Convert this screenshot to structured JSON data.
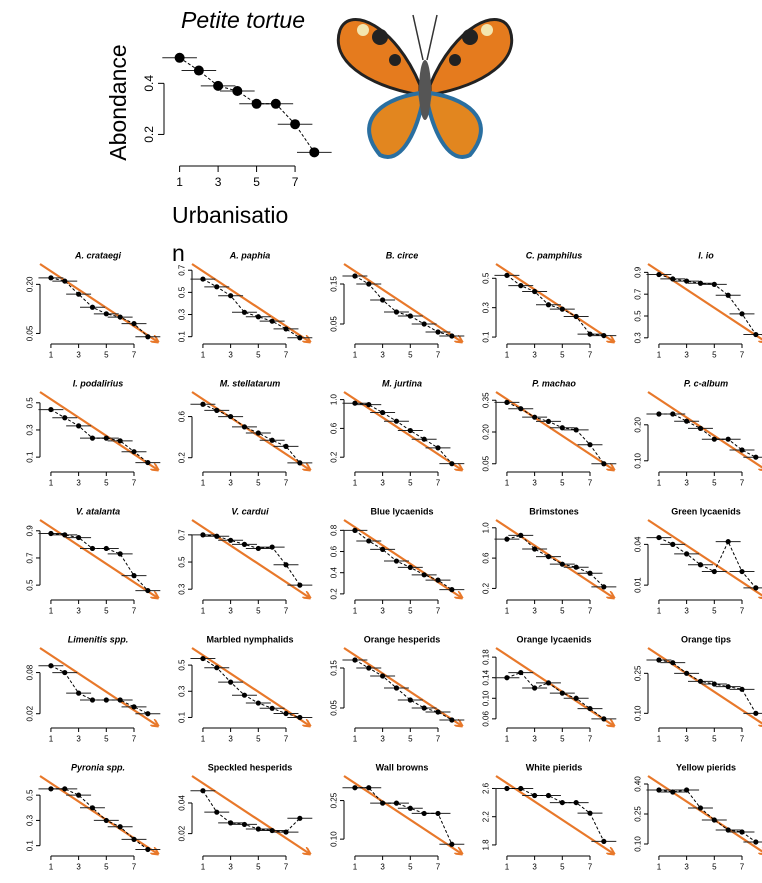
{
  "chart_data": [
    {
      "type": "scatter",
      "title": "Petite tortue",
      "italic": true,
      "y_label": "Abondance",
      "x_label": "Urbanisation",
      "x": [
        1,
        2,
        3,
        4,
        5,
        6,
        7,
        8
      ],
      "values": [
        0.5,
        0.45,
        0.39,
        0.37,
        0.32,
        0.32,
        0.24,
        0.13
      ],
      "xlim": [
        0.5,
        8.4
      ],
      "xticks": [
        1,
        3,
        5,
        7
      ],
      "ylim": [
        0.1,
        0.55
      ],
      "yticks": [
        0.2,
        0.4
      ]
    },
    {
      "type": "scatter",
      "title": "A. crataegi",
      "italic": true,
      "x": [
        1,
        2,
        3,
        4,
        5,
        6,
        7,
        8
      ],
      "values": [
        0.22,
        0.21,
        0.17,
        0.13,
        0.11,
        0.1,
        0.08,
        0.04
      ],
      "xlim": [
        0.5,
        8.3
      ],
      "xticks": [
        1,
        3,
        5,
        7
      ],
      "ylim": [
        0.03,
        0.25
      ],
      "yticks": [
        0.05,
        {
          "value": 0.2,
          "label": "0.20"
        }
      ]
    },
    {
      "type": "scatter",
      "title": "A. paphia",
      "italic": true,
      "x": [
        1,
        2,
        3,
        4,
        5,
        6,
        7,
        8
      ],
      "values": [
        0.62,
        0.55,
        0.47,
        0.32,
        0.28,
        0.24,
        0.17,
        0.09
      ],
      "xlim": [
        0.5,
        8.3
      ],
      "xticks": [
        1,
        3,
        5,
        7
      ],
      "ylim": [
        0.07,
        0.72
      ],
      "yticks": [
        0.1,
        0.3,
        0.5,
        0.7
      ]
    },
    {
      "type": "scatter",
      "title": "B. circe",
      "italic": true,
      "x": [
        1,
        2,
        3,
        4,
        5,
        6,
        7,
        8
      ],
      "values": [
        0.17,
        0.15,
        0.11,
        0.08,
        0.07,
        0.05,
        0.03,
        0.02
      ],
      "xlim": [
        0.5,
        8.3
      ],
      "xticks": [
        1,
        3,
        5,
        7
      ],
      "ylim": [
        0.01,
        0.19
      ],
      "yticks": [
        0.05,
        0.15
      ]
    },
    {
      "type": "scatter",
      "title": "C. pamphilus",
      "italic": true,
      "x": [
        1,
        2,
        3,
        4,
        5,
        6,
        7,
        8
      ],
      "values": [
        0.52,
        0.45,
        0.41,
        0.32,
        0.29,
        0.24,
        0.12,
        0.11
      ],
      "xlim": [
        0.5,
        8.3
      ],
      "xticks": [
        1,
        3,
        5,
        7
      ],
      "ylim": [
        0.08,
        0.57
      ],
      "yticks": [
        0.1,
        0.3,
        0.5
      ]
    },
    {
      "type": "scatter",
      "title": "I. io",
      "italic": true,
      "x": [
        1,
        2,
        3,
        4,
        5,
        6,
        7,
        8
      ],
      "values": [
        0.88,
        0.84,
        0.82,
        0.8,
        0.79,
        0.69,
        0.52,
        0.33
      ],
      "xlim": [
        0.5,
        8.3
      ],
      "xticks": [
        1,
        3,
        5,
        7
      ],
      "ylim": [
        0.28,
        0.94
      ],
      "yticks": [
        0.3,
        0.5,
        0.7,
        0.9
      ]
    },
    {
      "type": "scatter",
      "title": "I. podalirius",
      "italic": true,
      "x": [
        1,
        2,
        3,
        4,
        5,
        6,
        7,
        8
      ],
      "values": [
        0.45,
        0.39,
        0.33,
        0.24,
        0.24,
        0.22,
        0.14,
        0.06
      ],
      "xlim": [
        0.5,
        8.3
      ],
      "xticks": [
        1,
        3,
        5,
        7
      ],
      "ylim": [
        0.02,
        0.55
      ],
      "yticks": [
        0.1,
        0.3,
        0.5
      ]
    },
    {
      "type": "scatter",
      "title": "M. stellatarum",
      "italic": true,
      "x": [
        1,
        2,
        3,
        4,
        5,
        6,
        7,
        8
      ],
      "values": [
        0.72,
        0.66,
        0.6,
        0.5,
        0.44,
        0.37,
        0.31,
        0.15
      ],
      "xlim": [
        0.5,
        8.3
      ],
      "xticks": [
        1,
        3,
        5,
        7
      ],
      "ylim": [
        0.1,
        0.8
      ],
      "yticks": [
        0.2,
        0.6
      ]
    },
    {
      "type": "scatter",
      "title": "M. jurtina",
      "italic": true,
      "x": [
        1,
        2,
        3,
        4,
        5,
        6,
        7,
        8
      ],
      "values": [
        0.95,
        0.93,
        0.82,
        0.7,
        0.57,
        0.45,
        0.33,
        0.11
      ],
      "xlim": [
        0.5,
        8.3
      ],
      "xticks": [
        1,
        3,
        5,
        7
      ],
      "ylim": [
        0.05,
        1.05
      ],
      "yticks": [
        0.2,
        0.6,
        {
          "value": 1,
          "label": "1.0"
        }
      ]
    },
    {
      "type": "scatter",
      "title": "P. machao",
      "italic": true,
      "x": [
        1,
        2,
        3,
        4,
        5,
        6,
        7,
        8
      ],
      "values": [
        0.34,
        0.31,
        0.27,
        0.25,
        0.22,
        0.21,
        0.14,
        0.05
      ],
      "xlim": [
        0.5,
        8.3
      ],
      "xticks": [
        1,
        3,
        5,
        7
      ],
      "ylim": [
        0.03,
        0.37
      ],
      "yticks": [
        0.05,
        {
          "value": 0.2,
          "label": "0.20"
        },
        0.35
      ]
    },
    {
      "type": "scatter",
      "title": "P. c-album",
      "italic": true,
      "x": [
        1,
        2,
        3,
        4,
        5,
        6,
        7,
        8
      ],
      "values": [
        0.23,
        0.23,
        0.21,
        0.19,
        0.16,
        0.16,
        0.13,
        0.11
      ],
      "xlim": [
        0.5,
        8.3
      ],
      "xticks": [
        1,
        3,
        5,
        7
      ],
      "ylim": [
        0.08,
        0.28
      ],
      "yticks": [
        {
          "value": 0.1,
          "label": "0.10"
        },
        {
          "value": 0.2,
          "label": "0.20"
        }
      ]
    },
    {
      "type": "scatter",
      "title": "V. atalanta",
      "italic": true,
      "x": [
        1,
        2,
        3,
        4,
        5,
        6,
        7,
        8
      ],
      "values": [
        0.88,
        0.87,
        0.85,
        0.77,
        0.77,
        0.73,
        0.57,
        0.46
      ],
      "xlim": [
        0.5,
        8.3
      ],
      "xticks": [
        1,
        3,
        5,
        7
      ],
      "ylim": [
        0.42,
        0.95
      ],
      "yticks": [
        0.5,
        0.7,
        0.9
      ]
    },
    {
      "type": "scatter",
      "title": "V. cardui",
      "italic": true,
      "x": [
        1,
        2,
        3,
        4,
        5,
        6,
        7,
        8
      ],
      "values": [
        0.7,
        0.69,
        0.66,
        0.63,
        0.6,
        0.61,
        0.48,
        0.33
      ],
      "xlim": [
        0.5,
        8.3
      ],
      "xticks": [
        1,
        3,
        5,
        7
      ],
      "ylim": [
        0.25,
        0.78
      ],
      "yticks": [
        0.3,
        0.5,
        0.7
      ]
    },
    {
      "type": "scatter",
      "title": "Blue lycaenids",
      "italic": false,
      "x": [
        1,
        2,
        3,
        4,
        5,
        6,
        7,
        8
      ],
      "values": [
        0.8,
        0.7,
        0.62,
        0.51,
        0.45,
        0.38,
        0.33,
        0.24
      ],
      "xlim": [
        0.5,
        8.3
      ],
      "xticks": [
        1,
        3,
        5,
        7
      ],
      "ylim": [
        0.18,
        0.86
      ],
      "yticks": [
        0.2,
        0.4,
        0.6,
        0.8
      ]
    },
    {
      "type": "scatter",
      "title": "Brimstones",
      "italic": false,
      "x": [
        1,
        2,
        3,
        4,
        5,
        6,
        7,
        8
      ],
      "values": [
        0.85,
        0.9,
        0.72,
        0.62,
        0.52,
        0.48,
        0.4,
        0.22
      ],
      "xlim": [
        0.5,
        8.3
      ],
      "xticks": [
        1,
        3,
        5,
        7
      ],
      "ylim": [
        0.1,
        1.05
      ],
      "yticks": [
        0.2,
        0.6,
        {
          "value": 1,
          "label": "1.0"
        }
      ]
    },
    {
      "type": "scatter",
      "title": "Green lycaenids",
      "italic": false,
      "x": [
        1,
        2,
        3,
        4,
        5,
        6,
        7,
        8
      ],
      "values": [
        0.045,
        0.04,
        0.033,
        0.025,
        0.02,
        0.042,
        0.02,
        0.008
      ],
      "xlim": [
        0.5,
        8.3
      ],
      "xticks": [
        1,
        3,
        5,
        7
      ],
      "ylim": [
        0.002,
        0.055
      ],
      "yticks": [
        0.01,
        0.04
      ]
    },
    {
      "type": "scatter",
      "title": "Limenitis spp.",
      "italic": true,
      "x": [
        1,
        2,
        3,
        4,
        5,
        6,
        7,
        8
      ],
      "values": [
        0.09,
        0.08,
        0.05,
        0.04,
        0.04,
        0.04,
        0.03,
        0.02
      ],
      "xlim": [
        0.5,
        8.3
      ],
      "xticks": [
        1,
        3,
        5,
        7
      ],
      "ylim": [
        0.005,
        0.11
      ],
      "yticks": [
        0.02,
        0.08
      ]
    },
    {
      "type": "scatter",
      "title": "Marbled nymphalids",
      "italic": false,
      "x": [
        1,
        2,
        3,
        4,
        5,
        6,
        7,
        8
      ],
      "values": [
        0.55,
        0.48,
        0.37,
        0.27,
        0.21,
        0.17,
        0.13,
        0.1
      ],
      "xlim": [
        0.5,
        8.3
      ],
      "xticks": [
        1,
        3,
        5,
        7
      ],
      "ylim": [
        0.05,
        0.6
      ],
      "yticks": [
        0.1,
        0.3,
        0.5
      ]
    },
    {
      "type": "scatter",
      "title": "Orange hesperids",
      "italic": false,
      "x": [
        1,
        2,
        3,
        4,
        5,
        6,
        7,
        8
      ],
      "values": [
        0.17,
        0.15,
        0.13,
        0.1,
        0.07,
        0.05,
        0.04,
        0.02
      ],
      "xlim": [
        0.5,
        8.3
      ],
      "xticks": [
        1,
        3,
        5,
        7
      ],
      "ylim": [
        0.01,
        0.19
      ],
      "yticks": [
        0.05,
        0.15
      ]
    },
    {
      "type": "scatter",
      "title": "Orange lycaenids",
      "italic": false,
      "x": [
        1,
        2,
        3,
        4,
        5,
        6,
        7,
        8
      ],
      "values": [
        0.14,
        0.15,
        0.12,
        0.13,
        0.11,
        0.1,
        0.08,
        0.06
      ],
      "xlim": [
        0.5,
        8.3
      ],
      "xticks": [
        1,
        3,
        5,
        7
      ],
      "ylim": [
        0.05,
        0.19
      ],
      "yticks": [
        0.06,
        {
          "value": 0.1,
          "label": "0.10"
        },
        0.14,
        0.18
      ]
    },
    {
      "type": "scatter",
      "title": "Orange tips",
      "italic": false,
      "x": [
        1,
        2,
        3,
        4,
        5,
        6,
        7,
        8
      ],
      "values": [
        0.3,
        0.29,
        0.25,
        0.22,
        0.21,
        0.2,
        0.19,
        0.1
      ],
      "xlim": [
        0.5,
        8.3
      ],
      "xticks": [
        1,
        3,
        5,
        7
      ],
      "ylim": [
        0.06,
        0.33
      ],
      "yticks": [
        {
          "value": 0.1,
          "label": "0.10"
        },
        0.25
      ]
    },
    {
      "type": "scatter",
      "title": "Pyronia spp.",
      "italic": true,
      "x": [
        1,
        2,
        3,
        4,
        5,
        6,
        7,
        8
      ],
      "values": [
        0.55,
        0.55,
        0.5,
        0.4,
        0.3,
        0.25,
        0.15,
        0.07
      ],
      "xlim": [
        0.5,
        8.3
      ],
      "xticks": [
        1,
        3,
        5,
        7
      ],
      "ylim": [
        0.05,
        0.62
      ],
      "yticks": [
        0.1,
        0.3,
        0.5
      ]
    },
    {
      "type": "scatter",
      "title": "Speckled hesperids",
      "italic": false,
      "x": [
        1,
        2,
        3,
        4,
        5,
        6,
        7,
        8
      ],
      "values": [
        0.048,
        0.034,
        0.027,
        0.026,
        0.023,
        0.022,
        0.021,
        0.03
      ],
      "xlim": [
        0.5,
        8.3
      ],
      "xticks": [
        1,
        3,
        5,
        7
      ],
      "ylim": [
        0.008,
        0.055
      ],
      "yticks": [
        0.02,
        0.04
      ]
    },
    {
      "type": "scatter",
      "title": "Wall browns",
      "italic": false,
      "x": [
        1,
        2,
        3,
        4,
        5,
        6,
        7,
        8
      ],
      "values": [
        0.3,
        0.3,
        0.24,
        0.24,
        0.22,
        0.2,
        0.2,
        0.08
      ],
      "xlim": [
        0.5,
        8.3
      ],
      "xticks": [
        1,
        3,
        5,
        7
      ],
      "ylim": [
        0.05,
        0.33
      ],
      "yticks": [
        {
          "value": 0.1,
          "label": "0.10"
        },
        0.25
      ]
    },
    {
      "type": "scatter",
      "title": "White pierids",
      "italic": false,
      "x": [
        1,
        2,
        3,
        4,
        5,
        6,
        7,
        8
      ],
      "values": [
        2.6,
        2.6,
        2.5,
        2.5,
        2.4,
        2.4,
        2.25,
        1.85
      ],
      "xlim": [
        0.5,
        8.3
      ],
      "xticks": [
        1,
        3,
        5,
        7
      ],
      "ylim": [
        1.7,
        2.72
      ],
      "yticks": [
        1.8,
        2.2,
        2.6
      ]
    },
    {
      "type": "scatter",
      "title": "Yellow pierids",
      "italic": false,
      "x": [
        1,
        2,
        3,
        4,
        5,
        6,
        7,
        8
      ],
      "values": [
        0.37,
        0.36,
        0.37,
        0.28,
        0.22,
        0.17,
        0.16,
        0.11
      ],
      "xlim": [
        0.5,
        8.3
      ],
      "xticks": [
        1,
        3,
        5,
        7
      ],
      "ylim": [
        0.06,
        0.42
      ],
      "yticks": [
        {
          "value": 0.1,
          "label": "0.10"
        },
        0.25,
        {
          "value": 0.4,
          "label": "0.40"
        }
      ]
    }
  ]
}
